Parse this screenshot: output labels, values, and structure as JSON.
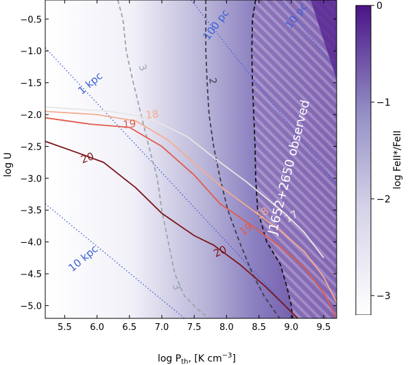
{
  "chart_data": {
    "type": "heatmap",
    "xlabel": "log P",
    "xlabel_sub": "th",
    "xlabel_unit": ", [K cm",
    "xlabel_sup": "−3",
    "xlabel_close": "]",
    "ylabel": "log U",
    "xlim": [
      5.2,
      9.7
    ],
    "ylim": [
      -5.2,
      -0.2
    ],
    "xticks": [
      "5.5",
      "6.0",
      "6.5",
      "7.0",
      "7.5",
      "8.0",
      "8.5",
      "9.0",
      "9.5"
    ],
    "yticks": [
      "−0.5",
      "−1.0",
      "−1.5",
      "−2.0",
      "−2.5",
      "−3.0",
      "−3.5",
      "−4.0",
      "−4.5",
      "−5.0"
    ],
    "colorbar": {
      "label": "log FeII*/FeII",
      "range": [
        -3.2,
        0
      ],
      "ticks": [
        "0",
        "−1",
        "−2",
        "−3"
      ],
      "tick_values": [
        0,
        -1,
        -2,
        -3
      ],
      "colors": [
        "#ffffff",
        "#4a1486"
      ]
    },
    "observed_region": {
      "label": "J1652+2650 observed",
      "fill": "#7e5aa8"
    },
    "distance_lines": [
      {
        "label": "10 pc",
        "x": [
          8.85,
          9.7
        ],
        "y": [
          -0.2,
          -1.3
        ]
      },
      {
        "label": "100 pc",
        "x": [
          7.45,
          9.7
        ],
        "y": [
          -0.2,
          -3.1
        ]
      },
      {
        "label": "1 kpc",
        "x": [
          5.2,
          9.1
        ],
        "y": [
          -0.95,
          -5.2
        ]
      },
      {
        "label": "10 kpc",
        "x": [
          5.2,
          7.35
        ],
        "y": [
          -3.4,
          -5.2
        ]
      }
    ],
    "dashed_contours": [
      {
        "label": "3",
        "color": "#98a5a8",
        "x": [
          6.32,
          6.4,
          6.45,
          6.56,
          6.68,
          6.8,
          6.93,
          7.0,
          7.1,
          7.2,
          7.35,
          7.55,
          7.72
        ],
        "y": [
          -0.2,
          -0.5,
          -1.0,
          -1.5,
          -2.0,
          -2.5,
          -3.0,
          -3.5,
          -4.0,
          -4.5,
          -4.85,
          -5.05,
          -5.2
        ]
      },
      {
        "label": "2",
        "color": "#3c3c4a",
        "x": [
          7.68,
          7.68,
          7.68,
          7.7,
          7.73,
          7.8,
          7.9,
          8.02,
          8.2,
          8.4,
          8.58,
          8.75,
          8.82
        ],
        "y": [
          -0.2,
          -0.5,
          -1.0,
          -1.5,
          -2.0,
          -2.5,
          -3.0,
          -3.5,
          -4.0,
          -4.5,
          -4.85,
          -5.1,
          -5.2
        ]
      },
      {
        "label": "",
        "color": "#111111",
        "x": [
          8.45,
          8.4,
          8.39,
          8.4,
          8.42,
          8.44,
          8.45,
          8.48,
          8.62,
          8.83,
          8.93,
          9.0,
          9.02
        ],
        "y": [
          -0.2,
          -0.5,
          -1.0,
          -1.5,
          -2.0,
          -2.5,
          -3.0,
          -3.5,
          -4.0,
          -4.35,
          -4.7,
          -5.0,
          -5.2
        ]
      }
    ],
    "solid_contours": [
      {
        "label": "17",
        "color": "#e6e6e6",
        "x": [
          5.2,
          6.2,
          6.8,
          7.4,
          7.9,
          8.3,
          8.6,
          8.9,
          9.2,
          9.5
        ],
        "y": [
          -1.88,
          -1.95,
          -2.05,
          -2.35,
          -2.75,
          -3.05,
          -3.3,
          -3.55,
          -3.85,
          -4.25
        ]
      },
      {
        "label": "18",
        "color": "#f3ad8f",
        "x": [
          5.2,
          6.0,
          6.6,
          7.1,
          7.6,
          8.0,
          8.4,
          8.8,
          9.2,
          9.5,
          9.7
        ],
        "y": [
          -1.95,
          -2.0,
          -2.1,
          -2.4,
          -2.85,
          -3.2,
          -3.5,
          -3.8,
          -4.15,
          -4.55,
          -4.95
        ]
      },
      {
        "label": "19",
        "color": "#e05a4a",
        "x": [
          5.2,
          5.9,
          6.5,
          7.0,
          7.5,
          7.9,
          8.4,
          8.8,
          9.2,
          9.5,
          9.7
        ],
        "y": [
          -2.05,
          -2.15,
          -2.2,
          -2.5,
          -2.95,
          -3.4,
          -3.75,
          -4.05,
          -4.4,
          -4.8,
          -5.2
        ]
      },
      {
        "label": "20",
        "color": "#7a1418",
        "x": [
          5.2,
          5.7,
          6.1,
          6.6,
          7.0,
          7.5,
          7.8,
          8.2,
          8.6,
          8.9,
          9.1
        ],
        "y": [
          -2.42,
          -2.6,
          -2.75,
          -3.15,
          -3.55,
          -3.9,
          -4.05,
          -4.35,
          -4.7,
          -5.0,
          -5.2
        ]
      }
    ]
  }
}
